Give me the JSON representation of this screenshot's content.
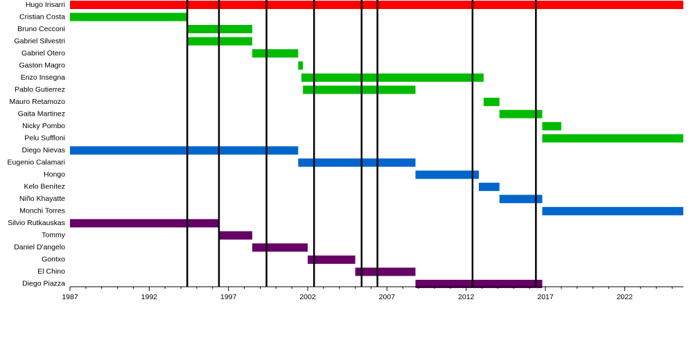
{
  "chart_data": {
    "type": "timeline",
    "bars": [
      {
        "name": "Hugo Irisarri",
        "start": 1987,
        "end": 2025.7,
        "color": "#ff0000"
      },
      {
        "name": "Cristian Costa",
        "start": 1987,
        "end": 1994.4,
        "color": "#00bb00"
      },
      {
        "name": "Bruno Cecconi",
        "start": 1994.4,
        "end": 1998.5,
        "color": "#00bb00"
      },
      {
        "name": "Gabriel Silvestri",
        "start": 1994.4,
        "end": 1998.5,
        "color": "#00bb00"
      },
      {
        "name": "Gabriel Otero",
        "start": 1998.5,
        "end": 2001.4,
        "color": "#00bb00"
      },
      {
        "name": "Gaston Magro",
        "start": 2001.4,
        "end": 2001.7,
        "color": "#00bb00"
      },
      {
        "name": "Enzo Insegna",
        "start": 2001.6,
        "end": 2013.1,
        "color": "#00bb00"
      },
      {
        "name": "Pablo Gutierrez",
        "start": 2001.7,
        "end": 2008.8,
        "color": "#00bb00"
      },
      {
        "name": "Mauro Retamozo",
        "start": 2013.1,
        "end": 2014.1,
        "color": "#00bb00"
      },
      {
        "name": "Gaita Martinez",
        "start": 2014.1,
        "end": 2016.8,
        "color": "#00bb00"
      },
      {
        "name": "Nicky Pombo",
        "start": 2016.8,
        "end": 2018.0,
        "color": "#00bb00"
      },
      {
        "name": "Pelu Suffloni",
        "start": 2016.8,
        "end": 2025.7,
        "color": "#00bb00"
      },
      {
        "name": "Diego Nievas",
        "start": 1987,
        "end": 2001.4,
        "color": "#0066cc"
      },
      {
        "name": "Eugenio Calamari",
        "start": 2001.4,
        "end": 2008.8,
        "color": "#0066cc"
      },
      {
        "name": "Hongo",
        "start": 2008.8,
        "end": 2012.8,
        "color": "#0066cc"
      },
      {
        "name": "Kelo Benítez",
        "start": 2012.8,
        "end": 2014.1,
        "color": "#0066cc"
      },
      {
        "name": "Niño Khayatte",
        "start": 2014.1,
        "end": 2016.8,
        "color": "#0066cc"
      },
      {
        "name": "Monchi Torres",
        "start": 2016.8,
        "end": 2025.7,
        "color": "#0066cc"
      },
      {
        "name": "Silvio Rutkauskas",
        "start": 1987,
        "end": 1996.4,
        "color": "#660066"
      },
      {
        "name": "Tommy",
        "start": 1996.4,
        "end": 1998.5,
        "color": "#660066"
      },
      {
        "name": "Daniel D'angelo",
        "start": 1998.5,
        "end": 2002.0,
        "color": "#660066"
      },
      {
        "name": "Gontxo",
        "start": 2002.0,
        "end": 2005.0,
        "color": "#660066"
      },
      {
        "name": "El Chino",
        "start": 2005.0,
        "end": 2008.8,
        "color": "#660066"
      },
      {
        "name": "Diego Piazza",
        "start": 2008.8,
        "end": 2016.8,
        "color": "#660066"
      }
    ],
    "events": [
      1994.4,
      1996.4,
      1999.4,
      2002.4,
      2005.4,
      2006.4,
      2012.4,
      2016.4
    ],
    "xlim": [
      1987,
      2025.7
    ],
    "xticks": [
      1987,
      1992,
      1997,
      2002,
      2007,
      2012,
      2017,
      2022
    ],
    "xminorticks": [
      1988,
      1989,
      1990,
      1991,
      1993,
      1994,
      1995,
      1996,
      1998,
      1999,
      2000,
      2001,
      2003,
      2004,
      2005,
      2006,
      2008,
      2009,
      2010,
      2011,
      2013,
      2014,
      2015,
      2016,
      2018,
      2019,
      2020,
      2021,
      2023,
      2024,
      2025
    ]
  }
}
